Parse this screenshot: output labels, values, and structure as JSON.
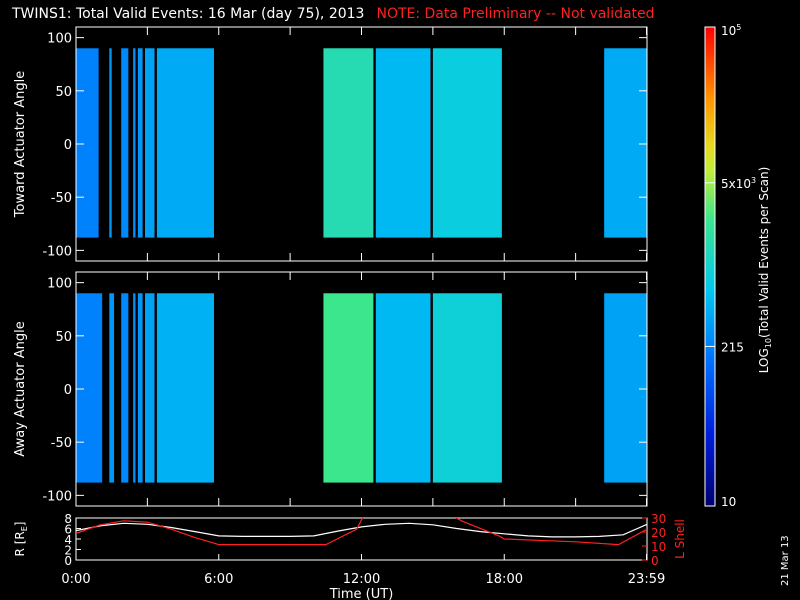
{
  "title": {
    "main": "TWINS1: Total Valid Events: 16 Mar (day  75), 2013",
    "note": "NOTE: Data Preliminary -- Not validated"
  },
  "side_date": "21 Mar 13",
  "chart_data": [
    {
      "type": "heatmap",
      "name": "top-panel",
      "ylabel": "Toward Actuator Angle",
      "ylim": [
        -110,
        110
      ],
      "yticks": [
        -100,
        -50,
        0,
        50,
        100
      ],
      "y_data_range": [
        -88,
        90
      ],
      "xlim": [
        0,
        24
      ],
      "x_data_ticks": [
        0,
        3,
        6,
        9,
        12,
        15,
        18,
        21,
        23.98
      ],
      "data_intervals": [
        {
          "start": 0.0,
          "end": 0.95,
          "level": 215
        },
        {
          "start": 1.4,
          "end": 1.5,
          "level": 300
        },
        {
          "start": 1.9,
          "end": 2.2,
          "level": 240
        },
        {
          "start": 2.4,
          "end": 2.5,
          "level": 250
        },
        {
          "start": 2.6,
          "end": 2.8,
          "level": 300
        },
        {
          "start": 2.9,
          "end": 3.3,
          "level": 350
        },
        {
          "start": 3.4,
          "end": 5.8,
          "level": 400
        },
        {
          "start": 10.4,
          "end": 12.5,
          "level": 1500
        },
        {
          "start": 12.6,
          "end": 14.9,
          "level": 500
        },
        {
          "start": 15.0,
          "end": 17.9,
          "level": 800
        },
        {
          "start": 22.2,
          "end": 24.0,
          "level": 400
        }
      ],
      "colorbar": {
        "label": "LOG",
        "label_sub": "10",
        "label_rest": "(Total Valid  Events per Scan)",
        "range": [
          10,
          100000
        ],
        "tick_labels": [
          {
            "text": "10",
            "value": 10
          },
          {
            "text": "215",
            "value": 215
          },
          {
            "text": "5x10",
            "sup": "3",
            "value": 5000
          },
          {
            "text": "10",
            "sup": "5",
            "value": 100000
          }
        ]
      }
    },
    {
      "type": "heatmap",
      "name": "middle-panel",
      "ylabel": "Away Actuator Angle",
      "ylim": [
        -110,
        110
      ],
      "yticks": [
        -100,
        -50,
        0,
        50,
        100
      ],
      "y_data_range": [
        -88,
        90
      ],
      "xlim": [
        0,
        24
      ],
      "data_intervals": [
        {
          "start": 0.0,
          "end": 1.1,
          "level": 215
        },
        {
          "start": 1.4,
          "end": 1.6,
          "level": 300
        },
        {
          "start": 1.9,
          "end": 2.2,
          "level": 240
        },
        {
          "start": 2.4,
          "end": 2.5,
          "level": 250
        },
        {
          "start": 2.6,
          "end": 2.8,
          "level": 300
        },
        {
          "start": 2.9,
          "end": 3.3,
          "level": 350
        },
        {
          "start": 3.4,
          "end": 5.8,
          "level": 450
        },
        {
          "start": 10.4,
          "end": 12.5,
          "level": 2500
        },
        {
          "start": 12.6,
          "end": 14.9,
          "level": 500
        },
        {
          "start": 15.0,
          "end": 17.9,
          "level": 900
        },
        {
          "start": 22.2,
          "end": 24.0,
          "level": 350
        }
      ]
    },
    {
      "type": "line",
      "name": "orbit-panel",
      "ylabel": "R [R",
      "ylabel_sub": "E",
      "ylabel_close": "]",
      "ylim": [
        0,
        8
      ],
      "yticks": [
        0,
        2,
        4,
        6,
        8
      ],
      "y2label": "L Shell",
      "y2lim": [
        0,
        30
      ],
      "y2ticks": [
        0,
        10,
        20,
        30
      ],
      "xlim": [
        0,
        24
      ],
      "xticks": [
        {
          "value": 0,
          "label": "0:00"
        },
        {
          "value": 6,
          "label": "6:00"
        },
        {
          "value": 12,
          "label": "12:00"
        },
        {
          "value": 18,
          "label": "18:00"
        },
        {
          "value": 23.98,
          "label": "23:59"
        }
      ],
      "xlabel": "Time (UT)",
      "series": [
        {
          "color": "#ffffff",
          "x": [
            0,
            1,
            2,
            3,
            4,
            5,
            6,
            7,
            8,
            9,
            10,
            11,
            12,
            13,
            14,
            15,
            16,
            17,
            18,
            19,
            20,
            21,
            22,
            23,
            24
          ],
          "y": [
            5.6,
            6.5,
            7.0,
            6.8,
            6.2,
            5.4,
            4.6,
            4.5,
            4.5,
            4.5,
            4.6,
            5.5,
            6.3,
            6.8,
            7.0,
            6.7,
            6.0,
            5.4,
            5.0,
            4.6,
            4.4,
            4.4,
            4.5,
            4.8,
            6.8
          ]
        },
        {
          "color": "#ff2020",
          "axis": "right",
          "x": [
            0,
            1,
            2,
            3,
            4,
            5,
            5.8,
            6.0,
            8,
            10.5,
            11.8,
            12.1,
            15.8,
            16.2,
            17.8,
            18.0,
            21,
            22.8,
            24
          ],
          "y": [
            19,
            25,
            28,
            27,
            22,
            16,
            12,
            11,
            11,
            11,
            22,
            32,
            32,
            28,
            17,
            15,
            13,
            11,
            22
          ]
        }
      ]
    }
  ]
}
